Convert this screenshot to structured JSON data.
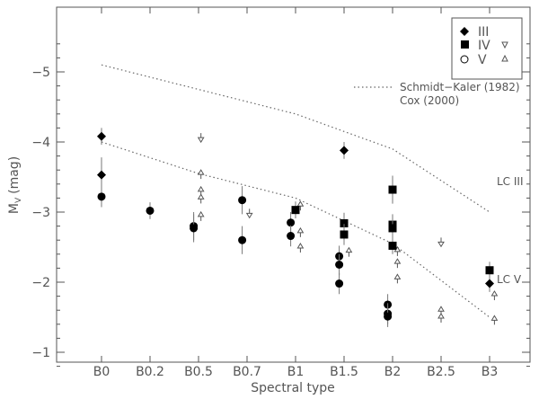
{
  "chart_data": {
    "type": "scatter",
    "title": "",
    "xlabel": "Spectral type",
    "ylabel_main": "M",
    "ylabel_sub": "V",
    "ylabel_unit": "(mag)",
    "categories": [
      "B0",
      "B0.2",
      "B0.5",
      "B0.7",
      "B1",
      "B1.5",
      "B2",
      "B2.5",
      "B3"
    ],
    "yticks": [
      -5,
      -4,
      -3,
      -2,
      -1
    ],
    "ytick_labels": [
      "−5",
      "−4",
      "−3",
      "−2",
      "−1"
    ],
    "ylim": [
      -0.5,
      -5.5
    ],
    "grid": false,
    "legend": {
      "placement": "top-right",
      "rows": [
        {
          "label": "III",
          "marker": "diamond"
        },
        {
          "label": "IV",
          "marker": "square",
          "marker2": "open-v"
        },
        {
          "label": "V",
          "marker": "open-circle",
          "marker2": "open-triangle"
        }
      ]
    },
    "calibration_legend": {
      "line1": "Schmidt−Kaler (1982)",
      "line2": "Cox (2000)"
    },
    "lines": [
      {
        "name": "LC III",
        "style": "dotted",
        "points": [
          [
            0,
            -5.1
          ],
          [
            2,
            -4.75
          ],
          [
            4,
            -4.4
          ],
          [
            6,
            -3.9
          ],
          [
            8,
            -3.0
          ]
        ]
      },
      {
        "name": "LC V",
        "style": "dotted",
        "points": [
          [
            0,
            -4.0
          ],
          [
            2,
            -3.55
          ],
          [
            4,
            -3.2
          ],
          [
            6,
            -2.55
          ],
          [
            8,
            -1.5
          ]
        ]
      }
    ],
    "series": [
      {
        "marker": "diamond",
        "points": [
          {
            "x": 0,
            "y": -4.08,
            "err": 0.12
          },
          {
            "x": 0,
            "y": -3.53,
            "err": 0.25
          },
          {
            "x": 5,
            "y": -3.88,
            "err": 0.12
          },
          {
            "x": 8,
            "y": -1.98,
            "err": 0.12
          }
        ]
      },
      {
        "marker": "square",
        "points": [
          {
            "x": 4,
            "y": -3.03,
            "err": 0.12
          },
          {
            "x": 5,
            "y": -2.84,
            "err": 0.15
          },
          {
            "x": 5,
            "y": -2.68,
            "err": 0.15
          },
          {
            "x": 6,
            "y": -3.32,
            "err": 0.2
          },
          {
            "x": 6,
            "y": -2.82,
            "err": 0.15
          },
          {
            "x": 6,
            "y": -2.77,
            "err": 0.15
          },
          {
            "x": 6,
            "y": -2.52,
            "err": 0.12
          },
          {
            "x": 8,
            "y": -2.17,
            "err": 0.12
          }
        ]
      },
      {
        "marker": "circle",
        "points": [
          {
            "x": 0,
            "y": -3.22,
            "err": 0.15
          },
          {
            "x": 1,
            "y": -3.02,
            "err": 0.12
          },
          {
            "x": 1.9,
            "y": -2.8,
            "err": 0.2
          },
          {
            "x": 1.9,
            "y": -2.77,
            "err": 0.2
          },
          {
            "x": 2.9,
            "y": -3.17,
            "err": 0.2
          },
          {
            "x": 2.9,
            "y": -2.6,
            "err": 0.2
          },
          {
            "x": 3.9,
            "y": -2.85,
            "err": 0.15
          },
          {
            "x": 3.9,
            "y": -2.66,
            "err": 0.15
          },
          {
            "x": 4.9,
            "y": -2.37,
            "err": 0.15
          },
          {
            "x": 4.9,
            "y": -2.25,
            "err": 0.15
          },
          {
            "x": 4.9,
            "y": -1.98,
            "err": 0.15
          },
          {
            "x": 5.9,
            "y": -1.68,
            "err": 0.15
          },
          {
            "x": 5.9,
            "y": -1.55,
            "err": 0.15
          },
          {
            "x": 5.9,
            "y": -1.51,
            "err": 0.15
          }
        ]
      },
      {
        "marker": "open-v",
        "points": [
          {
            "x": 2.05,
            "y": -4.05
          },
          {
            "x": 3.05,
            "y": -2.97
          },
          {
            "x": 7.0,
            "y": -2.56
          }
        ]
      },
      {
        "marker": "open-triangle",
        "points": [
          {
            "x": 2.05,
            "y": -3.55
          },
          {
            "x": 2.05,
            "y": -3.31
          },
          {
            "x": 2.05,
            "y": -3.2
          },
          {
            "x": 2.05,
            "y": -2.95
          },
          {
            "x": 4.1,
            "y": -3.1
          },
          {
            "x": 4.1,
            "y": -2.72
          },
          {
            "x": 4.1,
            "y": -2.5
          },
          {
            "x": 5.1,
            "y": -2.44
          },
          {
            "x": 6.1,
            "y": -2.45
          },
          {
            "x": 6.1,
            "y": -2.28
          },
          {
            "x": 6.1,
            "y": -2.06
          },
          {
            "x": 7.0,
            "y": -1.6
          },
          {
            "x": 7.0,
            "y": -1.5
          },
          {
            "x": 8.1,
            "y": -1.82
          },
          {
            "x": 8.1,
            "y": -1.47
          }
        ]
      }
    ]
  }
}
